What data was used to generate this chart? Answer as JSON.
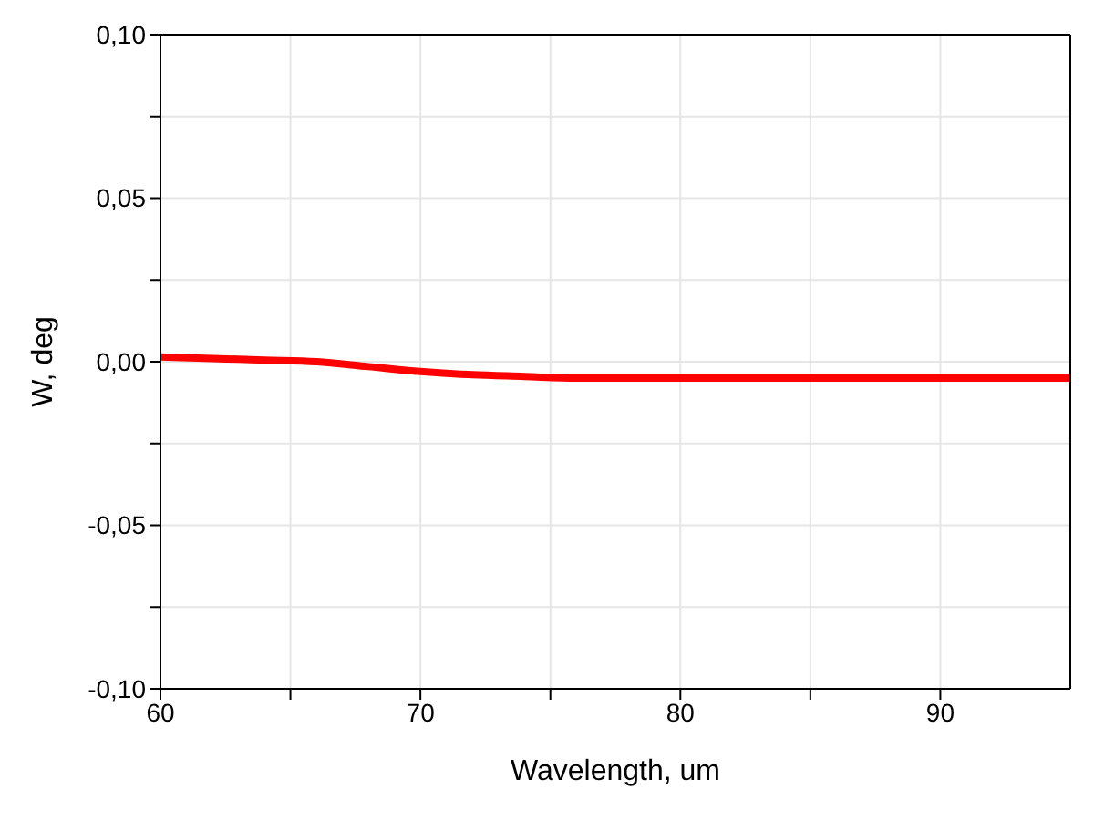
{
  "chart_data": {
    "type": "line",
    "xlabel": "Wavelength, um",
    "ylabel": "W, deg",
    "x": [
      60,
      62,
      64,
      66,
      68,
      70,
      72,
      74,
      76,
      78,
      80,
      82,
      84,
      86,
      88,
      90,
      92,
      95
    ],
    "series": [
      {
        "color": "#ff0000",
        "values": [
          0.0015,
          0.001,
          0.0005,
          0.0,
          -0.0015,
          -0.003,
          -0.004,
          -0.0045,
          -0.005,
          -0.005,
          -0.005,
          -0.005,
          -0.005,
          -0.005,
          -0.005,
          -0.005,
          -0.005,
          -0.005
        ]
      }
    ],
    "xlim": [
      60,
      95
    ],
    "xticks": [
      60,
      {
        "value": 65,
        "label": null
      },
      70,
      {
        "value": 75,
        "label": null
      },
      80,
      {
        "value": 85,
        "label": null
      },
      90
    ],
    "ylim": [
      -0.1,
      0.1
    ],
    "yticks": [
      {
        "value": -0.1,
        "label": "-0,10"
      },
      {
        "value": -0.075,
        "label": null
      },
      {
        "value": -0.05,
        "label": "-0,05"
      },
      {
        "value": -0.025,
        "label": null
      },
      {
        "value": 0,
        "label": "0,00"
      },
      {
        "value": 0.025,
        "label": null
      },
      {
        "value": 0.05,
        "label": "0,05"
      },
      {
        "value": 0.075,
        "label": null
      },
      {
        "value": 0.1,
        "label": "0,10"
      }
    ],
    "grid": true,
    "legend": false,
    "marker": "none",
    "line_style": "solid"
  }
}
